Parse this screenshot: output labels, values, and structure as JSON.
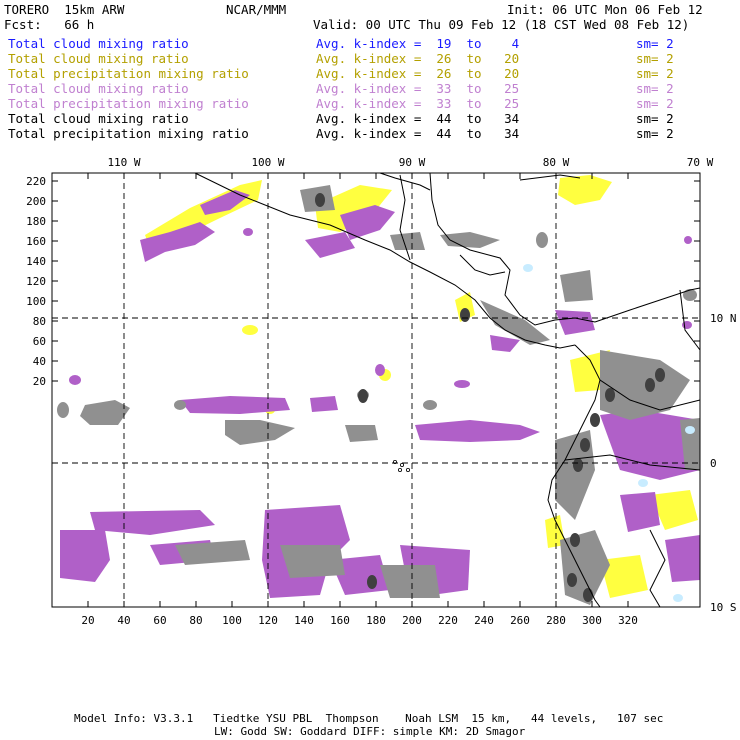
{
  "header": {
    "model_name": "TORERO  15km ARW",
    "org": "NCAR/MMM",
    "init": "Init: 06 UTC Mon 06 Feb 12",
    "fcst": "Fcst:   66 h",
    "valid": "Valid: 00 UTC Thu 09 Feb 12 (18 CST Wed 08 Feb 12)"
  },
  "legend": [
    {
      "field": "Total cloud mixing ratio",
      "kindex": "Avg. k-index =  19  to    4",
      "sm": "sm= 2",
      "color": "#1a1aff"
    },
    {
      "field": "Total cloud mixing ratio",
      "kindex": "Avg. k-index =  26  to   20",
      "sm": "sm= 2",
      "color": "#b3a000"
    },
    {
      "field": "Total precipitation mixing ratio",
      "kindex": "Avg. k-index =  26  to   20",
      "sm": "sm= 2",
      "color": "#b3a000"
    },
    {
      "field": "Total cloud mixing ratio",
      "kindex": "Avg. k-index =  33  to   25",
      "sm": "sm= 2",
      "color": "#c080d0"
    },
    {
      "field": "Total precipitation mixing ratio",
      "kindex": "Avg. k-index =  33  to   25",
      "sm": "sm= 2",
      "color": "#c080d0"
    },
    {
      "field": "Total cloud mixing ratio",
      "kindex": "Avg. k-index =  44  to   34",
      "sm": "sm= 2",
      "color": "#000000"
    },
    {
      "field": "Total precipitation mixing ratio",
      "kindex": "Avg. k-index =  44  to   34",
      "sm": "sm= 2",
      "color": "#000000"
    }
  ],
  "map": {
    "lon_labels": [
      "110 W",
      "100 W",
      "90 W",
      "80 W",
      "70 W"
    ],
    "lat_labels": [
      "10 N",
      "0",
      "10 S"
    ],
    "y_ticks": [
      "220",
      "200",
      "180",
      "160",
      "140",
      "120",
      "100",
      "80",
      "60",
      "40",
      "20"
    ],
    "x_ticks": [
      "20",
      "40",
      "60",
      "80",
      "100",
      "120",
      "140",
      "160",
      "180",
      "200",
      "220",
      "240",
      "260",
      "280",
      "300",
      "320"
    ],
    "colors": {
      "yellow": "#ffff40",
      "purple": "#b060c8",
      "gray": "#909090",
      "dark_gray": "#404040",
      "light_blue": "#c8ecff",
      "coast": "#000000"
    }
  },
  "footer": {
    "line1": "Model Info: V3.3.1   Tiedtke YSU PBL  Thompson    Noah LSM  15 km,   44 levels,   107 sec",
    "line2": "LW: Godd SW: Goddard DIFF: simple KM: 2D Smagor"
  }
}
